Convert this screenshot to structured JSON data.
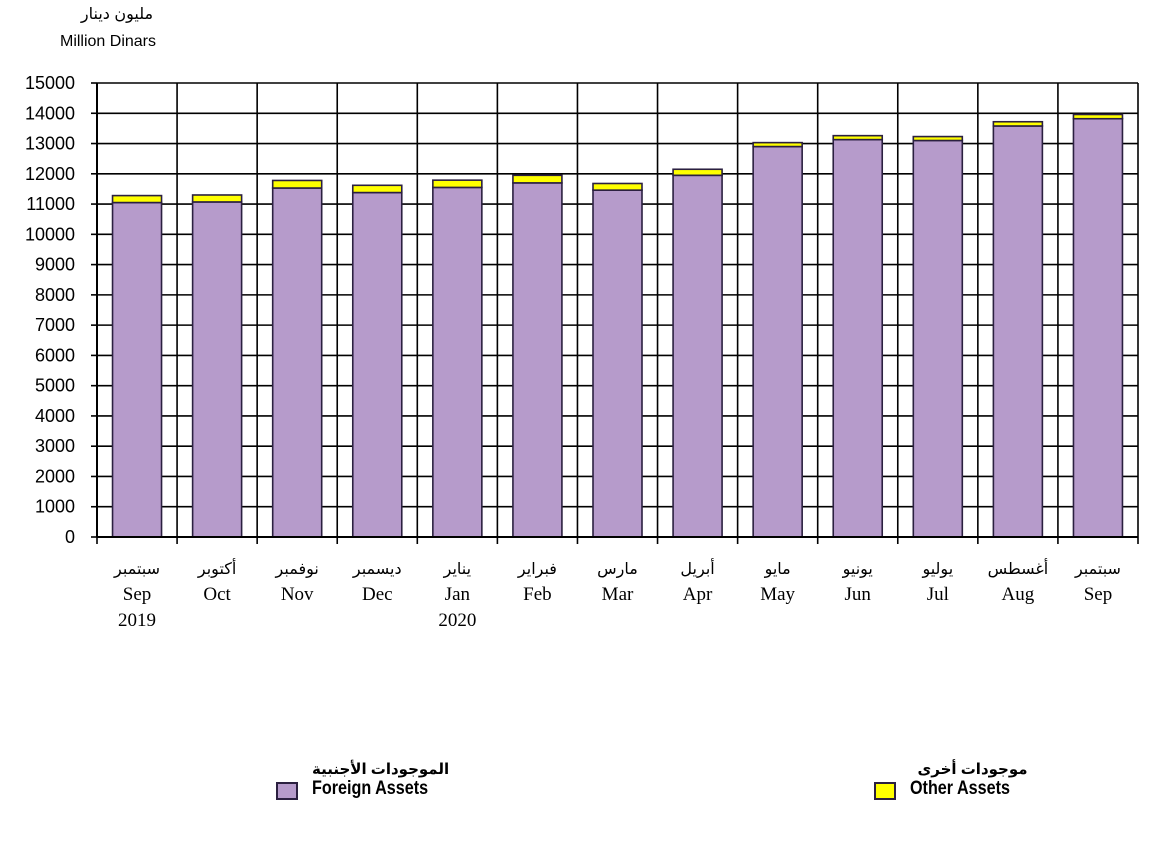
{
  "chart_data": {
    "type": "bar",
    "stacked": true,
    "unit_label_ar": "مليون دينار",
    "unit_label_en": "Million Dinars",
    "ylim": [
      0,
      15000
    ],
    "yticks": [
      0,
      1000,
      2000,
      3000,
      4000,
      5000,
      6000,
      7000,
      8000,
      9000,
      10000,
      11000,
      12000,
      13000,
      14000,
      15000
    ],
    "grid": true,
    "categories": [
      {
        "ar": "سبتمبر",
        "en": "Sep",
        "year": "2019"
      },
      {
        "ar": "أكتوبر",
        "en": "Oct",
        "year": ""
      },
      {
        "ar": "نوفمبر",
        "en": "Nov",
        "year": ""
      },
      {
        "ar": "ديسمبر",
        "en": "Dec",
        "year": ""
      },
      {
        "ar": "يناير",
        "en": "Jan",
        "year": "2020"
      },
      {
        "ar": "فبراير",
        "en": "Feb",
        "year": ""
      },
      {
        "ar": "مارس",
        "en": "Mar",
        "year": ""
      },
      {
        "ar": "أبريل",
        "en": "Apr",
        "year": ""
      },
      {
        "ar": "مايو",
        "en": "May",
        "year": ""
      },
      {
        "ar": "يونيو",
        "en": "Jun",
        "year": ""
      },
      {
        "ar": "يوليو",
        "en": "Jul",
        "year": ""
      },
      {
        "ar": "أغسطس",
        "en": "Aug",
        "year": ""
      },
      {
        "ar": "سبتمبر",
        "en": "Sep",
        "year": ""
      }
    ],
    "series": [
      {
        "name_ar": "الموجودات الأجنبية",
        "name_en": "Foreign Assets",
        "color": "#b69bcb",
        "values": [
          11050,
          11070,
          11530,
          11380,
          11550,
          11700,
          11460,
          11950,
          12900,
          13130,
          13100,
          13580,
          13820
        ]
      },
      {
        "name_ar": "موجودات أخرى",
        "name_en": "Other Assets",
        "color": "#ffff00",
        "values": [
          230,
          230,
          250,
          240,
          240,
          250,
          220,
          200,
          130,
          130,
          130,
          140,
          140
        ]
      }
    ],
    "legend_position": "bottom"
  }
}
